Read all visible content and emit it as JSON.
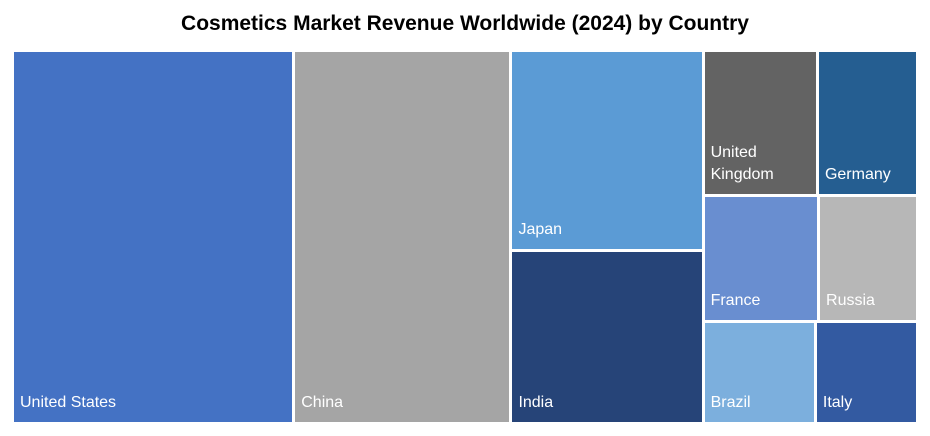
{
  "chart_data": {
    "type": "treemap",
    "title": "Cosmetics Market Revenue Worldwide (2024) by Country",
    "categories": [
      "United States",
      "China",
      "Japan",
      "India",
      "United Kingdom",
      "Germany",
      "France",
      "Russia",
      "Brazil",
      "Italy"
    ],
    "values": [
      101,
      78,
      37,
      32,
      16,
      14,
      14,
      12,
      11,
      10
    ],
    "colors": [
      "#4472c4",
      "#a5a5a5",
      "#5b9bd5",
      "#264478",
      "#636363",
      "#255e91",
      "#698ed0",
      "#b7b7b7",
      "#7cafdd",
      "#335aa1"
    ]
  }
}
